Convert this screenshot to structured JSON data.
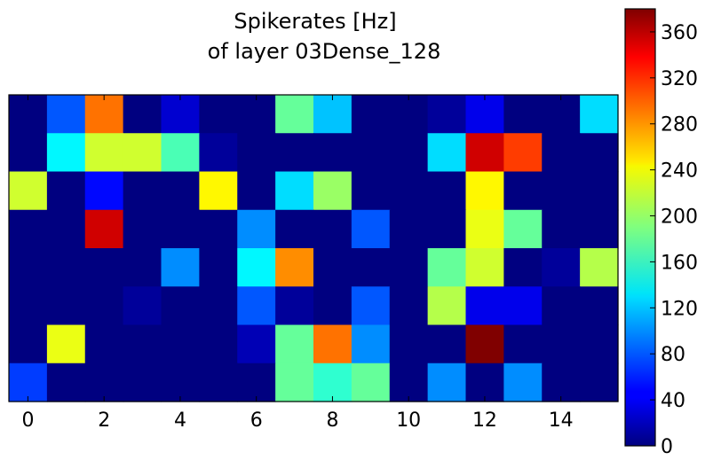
{
  "chart_data": {
    "type": "heatmap",
    "title_lines": [
      "Spikerates [Hz]",
      "of layer 03Dense_128"
    ],
    "xlabel": "",
    "ylabel": "",
    "x_ticks": [
      0,
      2,
      4,
      6,
      8,
      10,
      12,
      14
    ],
    "xlim": [
      -0.5,
      15.5
    ],
    "n_cols": 16,
    "n_rows": 8,
    "colormap": "jet",
    "colorbar": {
      "vmin": 0,
      "vmax": 380,
      "ticks": [
        0,
        40,
        80,
        120,
        160,
        200,
        240,
        280,
        320,
        360
      ]
    },
    "grid": false,
    "values": [
      [
        0,
        80,
        290,
        0,
        30,
        0,
        0,
        180,
        120,
        0,
        0,
        10,
        40,
        0,
        0,
        130
      ],
      [
        0,
        140,
        220,
        220,
        170,
        10,
        0,
        0,
        0,
        0,
        0,
        130,
        350,
        310,
        0,
        0
      ],
      [
        220,
        0,
        50,
        0,
        0,
        240,
        0,
        130,
        200,
        0,
        0,
        0,
        240,
        0,
        0,
        0
      ],
      [
        0,
        0,
        350,
        0,
        0,
        0,
        100,
        0,
        0,
        80,
        0,
        0,
        230,
        180,
        0,
        0
      ],
      [
        0,
        0,
        0,
        0,
        100,
        0,
        140,
        280,
        0,
        0,
        0,
        180,
        220,
        0,
        10,
        210
      ],
      [
        0,
        0,
        0,
        10,
        0,
        0,
        80,
        10,
        0,
        80,
        0,
        210,
        40,
        40,
        0,
        0
      ],
      [
        0,
        230,
        0,
        0,
        0,
        0,
        20,
        180,
        290,
        100,
        0,
        0,
        380,
        0,
        0,
        0
      ],
      [
        70,
        0,
        0,
        0,
        0,
        0,
        0,
        180,
        160,
        180,
        0,
        100,
        0,
        100,
        0,
        0
      ]
    ]
  }
}
